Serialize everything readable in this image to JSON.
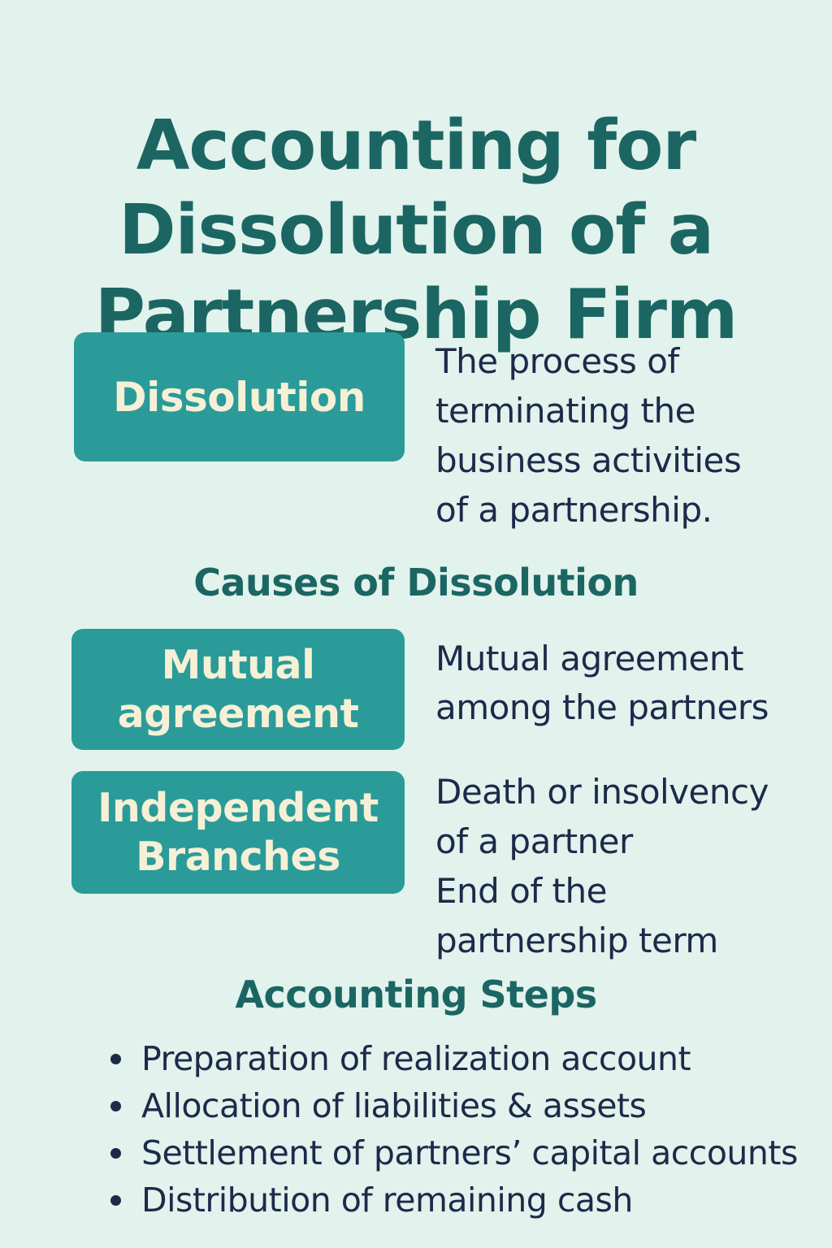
{
  "title": {
    "lines": [
      "Accounting for",
      "Dissolution of a",
      "Partnership Firm"
    ]
  },
  "definition": {
    "term": "Dissolution",
    "description_lines": [
      "The process of",
      "terminating the",
      "business activities",
      "of a partnership."
    ]
  },
  "causes": {
    "heading": "Causes of Dissolution",
    "items": [
      {
        "label_lines": [
          "Mutual",
          "agreement"
        ],
        "description_lines": [
          "Mutual agreement",
          "among the partners"
        ]
      },
      {
        "label_lines": [
          "Independent",
          "Branches"
        ],
        "description_lines": [
          "Death or insolvency",
          "of a partner",
          "End of the",
          "partnership term"
        ]
      }
    ]
  },
  "steps": {
    "heading": "Accounting Steps",
    "items": [
      "Preparation of realization account",
      "Allocation of liabilities & assets",
      "Settlement of partners’ capital accounts",
      "Distribution of remaining cash"
    ]
  },
  "colors": {
    "background": "#e2f2ec",
    "heading": "#1b6663",
    "tag_fill": "#2a9b99",
    "tag_text": "#f5f0d6",
    "body_text": "#1c2a4a"
  }
}
